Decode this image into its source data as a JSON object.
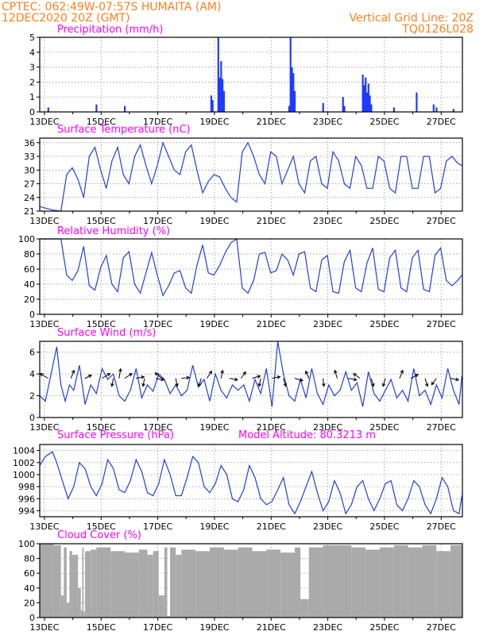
{
  "header": {
    "line1_left": "CPTEC:   062:49W-07:57S   HUMAITA (AM)",
    "line2_left": "12DEC2020 20Z (GMT)",
    "line1_right": "Vertical Grid Line: 20Z",
    "line2_right": "TQ0126L028"
  },
  "x_ticks": [
    "13DEC",
    "15DEC",
    "17DEC",
    "19DEC",
    "21DEC",
    "23DEC",
    "25DEC",
    "27DEC"
  ],
  "chart_data": [
    {
      "type": "bar",
      "title": "Precipitation (mm/h)",
      "ylim": [
        0,
        5
      ],
      "yticks": [
        0,
        1,
        2,
        3,
        4,
        5
      ],
      "x_unit": "days since 12DEC2020 20Z",
      "x": [
        0.3,
        2.0,
        3.0,
        6.05,
        6.1,
        6.3,
        6.35,
        6.4,
        6.45,
        6.5,
        8.8,
        8.85,
        8.9,
        8.95,
        9.0,
        10.0,
        10.7,
        10.75,
        11.4,
        11.45,
        11.5,
        11.55,
        11.6,
        11.65,
        11.7,
        12.5,
        13.3,
        13.9,
        14.0,
        14.6
      ],
      "values": [
        0.3,
        0.5,
        0.4,
        1.1,
        0.8,
        5.0,
        2.3,
        3.4,
        2.2,
        1.4,
        0.4,
        5.0,
        3.0,
        2.6,
        1.4,
        0.6,
        1.0,
        0.4,
        2.5,
        1.8,
        2.3,
        1.3,
        1.9,
        1.1,
        0.5,
        0.3,
        1.3,
        0.5,
        0.3,
        0.2
      ]
    },
    {
      "type": "line",
      "title": "Surface Temperature (nC)",
      "ylim": [
        21,
        37
      ],
      "yticks": [
        21,
        24,
        27,
        30,
        33,
        36
      ],
      "series": [
        {
          "x_unit": "days since 12DEC2020 20Z",
          "x": [
            0,
            0.5,
            0.75,
            0.95,
            1.15,
            1.35,
            1.55,
            1.75,
            1.95,
            2.15,
            2.35,
            2.55,
            2.75,
            2.95,
            3.15,
            3.35,
            3.55,
            3.75,
            3.95,
            4.15,
            4.35,
            4.55,
            4.75,
            4.95,
            5.15,
            5.35,
            5.55,
            5.75,
            5.95,
            6.15,
            6.35,
            6.55,
            6.75,
            6.95,
            7.15,
            7.35,
            7.55,
            7.75,
            7.95,
            8.15,
            8.35,
            8.55,
            8.75,
            8.95,
            9.15,
            9.35,
            9.55,
            9.75,
            9.95,
            10.15,
            10.35,
            10.55,
            10.75,
            10.95,
            11.15,
            11.35,
            11.55,
            11.75,
            11.95,
            12.15,
            12.35,
            12.55,
            12.75,
            12.95,
            13.15,
            13.35,
            13.55,
            13.75,
            13.95,
            14.15,
            14.35,
            14.55,
            14.75,
            14.9
          ],
          "values": [
            22,
            21.2,
            21,
            29,
            30.5,
            28,
            24,
            33,
            35,
            30,
            26,
            32,
            35,
            29,
            27,
            33,
            35.5,
            31,
            27,
            31,
            36,
            33,
            30,
            29,
            34,
            35.5,
            30,
            25,
            27.5,
            29,
            28.5,
            26,
            24,
            23,
            34,
            36,
            33,
            29,
            27,
            34,
            33,
            27,
            30,
            33,
            27,
            25,
            32,
            33,
            27,
            26,
            34,
            32,
            27,
            26,
            33,
            31,
            26,
            26,
            33,
            32,
            26,
            25,
            33,
            33,
            26,
            26,
            33,
            33,
            25,
            26,
            32,
            33,
            31.5,
            31
          ]
        }
      ]
    },
    {
      "type": "line",
      "title": "Relative Humidity (%)",
      "ylim": [
        0,
        100
      ],
      "yticks": [
        0,
        20,
        40,
        60,
        80,
        100
      ],
      "series": [
        {
          "x_unit": "days since 12DEC2020 20Z",
          "x": [
            0,
            0.5,
            0.75,
            0.95,
            1.15,
            1.35,
            1.55,
            1.75,
            1.95,
            2.15,
            2.35,
            2.55,
            2.75,
            2.95,
            3.15,
            3.35,
            3.55,
            3.75,
            3.95,
            4.15,
            4.35,
            4.55,
            4.75,
            4.95,
            5.15,
            5.35,
            5.55,
            5.75,
            5.95,
            6.15,
            6.35,
            6.55,
            6.75,
            6.95,
            7.15,
            7.35,
            7.55,
            7.75,
            7.95,
            8.15,
            8.35,
            8.55,
            8.75,
            8.95,
            9.15,
            9.35,
            9.55,
            9.75,
            9.95,
            10.15,
            10.35,
            10.55,
            10.75,
            10.95,
            11.15,
            11.35,
            11.55,
            11.75,
            11.95,
            12.15,
            12.35,
            12.55,
            12.75,
            12.95,
            13.15,
            13.35,
            13.55,
            13.75,
            13.95,
            14.15,
            14.35,
            14.55,
            14.75,
            14.9
          ],
          "values": [
            100,
            100,
            100,
            52,
            45,
            58,
            90,
            38,
            32,
            62,
            78,
            40,
            30,
            75,
            83,
            40,
            28,
            55,
            82,
            52,
            25,
            38,
            55,
            58,
            35,
            28,
            65,
            92,
            55,
            52,
            65,
            82,
            95,
            100,
            35,
            28,
            45,
            80,
            82,
            55,
            58,
            80,
            72,
            52,
            80,
            83,
            35,
            30,
            72,
            78,
            30,
            28,
            70,
            85,
            35,
            30,
            68,
            88,
            33,
            30,
            75,
            85,
            35,
            30,
            75,
            85,
            33,
            30,
            78,
            88,
            45,
            38,
            45,
            52
          ]
        }
      ]
    },
    {
      "type": "line",
      "title": "Surface Wind (m/s)",
      "ylim": [
        0,
        7
      ],
      "yticks": [
        0,
        2,
        4,
        6
      ],
      "series": [
        {
          "x_unit": "days since 12DEC2020 20Z",
          "x": [
            0,
            0.2,
            0.4,
            0.6,
            0.75,
            0.9,
            1.05,
            1.2,
            1.4,
            1.6,
            1.8,
            2.0,
            2.2,
            2.4,
            2.6,
            2.8,
            3.0,
            3.2,
            3.4,
            3.6,
            3.8,
            4.0,
            4.2,
            4.4,
            4.6,
            4.8,
            5.0,
            5.2,
            5.4,
            5.6,
            5.8,
            6.0,
            6.2,
            6.4,
            6.6,
            6.8,
            7.0,
            7.2,
            7.4,
            7.6,
            7.8,
            8.0,
            8.2,
            8.4,
            8.6,
            8.8,
            9.0,
            9.2,
            9.4,
            9.6,
            9.8,
            10.0,
            10.2,
            10.4,
            10.6,
            10.8,
            11.0,
            11.2,
            11.4,
            11.6,
            11.8,
            12.0,
            12.2,
            12.4,
            12.6,
            12.8,
            13.0,
            13.2,
            13.4,
            13.6,
            13.8,
            14.0,
            14.2,
            14.4,
            14.6,
            14.8,
            14.9
          ],
          "values": [
            2,
            1.5,
            4,
            6.5,
            3,
            1.5,
            3,
            2.5,
            4.8,
            1.2,
            3,
            2.2,
            4.5,
            3.5,
            4,
            2,
            1.5,
            2.5,
            4.5,
            1.8,
            3,
            2.4,
            4,
            3.5,
            2.2,
            3,
            2,
            2.5,
            4.8,
            2.8,
            3.5,
            1.5,
            4,
            2.5,
            1.8,
            3,
            2.5,
            3,
            1.5,
            3.5,
            2.2,
            4.5,
            1,
            7,
            4,
            2,
            1.5,
            3.5,
            1.8,
            4.5,
            2.2,
            1.2,
            3,
            2,
            2.5,
            4.2,
            2.5,
            3.2,
            1,
            4.2,
            2.2,
            1.5,
            2.5,
            3.5,
            1.8,
            2.5,
            1.5,
            4.5,
            2,
            2.5,
            1.2,
            3,
            1.8,
            4.5,
            2.5,
            1.2,
            3.8
          ]
        }
      ],
      "vectors": [
        {
          "x": 0.3,
          "u": -1,
          "v": 0.6
        },
        {
          "x": 1.1,
          "u": 0.4,
          "v": 1
        },
        {
          "x": 1.6,
          "u": 0.8,
          "v": 0.4
        },
        {
          "x": 2.2,
          "u": 1,
          "v": 0.6
        },
        {
          "x": 2.6,
          "u": -0.2,
          "v": -1
        },
        {
          "x": 2.8,
          "u": 0.2,
          "v": 1.2
        },
        {
          "x": 3.0,
          "u": 0.9,
          "v": 0.6
        },
        {
          "x": 3.4,
          "u": 1,
          "v": 0.2
        },
        {
          "x": 3.7,
          "u": -0.2,
          "v": -1
        },
        {
          "x": 4.1,
          "u": 1,
          "v": -0.2
        },
        {
          "x": 4.3,
          "u": -0.8,
          "v": 0.7
        },
        {
          "x": 4.8,
          "u": 0.2,
          "v": -1
        },
        {
          "x": 5.0,
          "u": 1,
          "v": 0.1
        },
        {
          "x": 5.7,
          "u": -0.3,
          "v": -1
        },
        {
          "x": 5.9,
          "u": 0.6,
          "v": 0.9
        },
        {
          "x": 6.4,
          "u": 0.2,
          "v": 1
        },
        {
          "x": 6.7,
          "u": 1,
          "v": -0.2
        },
        {
          "x": 7.1,
          "u": 0.6,
          "v": 0.8
        },
        {
          "x": 7.5,
          "u": 1,
          "v": 0.3
        },
        {
          "x": 7.8,
          "u": -0.2,
          "v": -1
        },
        {
          "x": 8.2,
          "u": 1,
          "v": 0.2
        },
        {
          "x": 8.6,
          "u": 0.3,
          "v": -1
        },
        {
          "x": 9.0,
          "u": 1,
          "v": -0.3
        },
        {
          "x": 9.5,
          "u": -0.4,
          "v": 0.9
        },
        {
          "x": 10.0,
          "u": 0.1,
          "v": -1
        },
        {
          "x": 10.5,
          "u": -0.3,
          "v": 1
        },
        {
          "x": 10.9,
          "u": 1,
          "v": -0.2
        },
        {
          "x": 11.3,
          "u": -0.8,
          "v": 0.6
        },
        {
          "x": 11.7,
          "u": 0.3,
          "v": -1
        },
        {
          "x": 12.2,
          "u": -0.3,
          "v": -1
        },
        {
          "x": 12.7,
          "u": 0.4,
          "v": 1
        },
        {
          "x": 13.1,
          "u": 0.9,
          "v": 0.5
        },
        {
          "x": 13.6,
          "u": 0.3,
          "v": -1
        },
        {
          "x": 14.0,
          "u": -0.6,
          "v": -0.8
        },
        {
          "x": 14.5,
          "u": 1,
          "v": -0.2
        }
      ]
    },
    {
      "type": "line",
      "title": "Surface Pressure (hPa)",
      "annotation": "Model Altitude: 80.3213 m",
      "ylim": [
        993,
        1005
      ],
      "yticks": [
        994,
        996,
        998,
        1000,
        1002,
        1004
      ],
      "series": [
        {
          "x_unit": "days since 12DEC2020 20Z",
          "x": [
            0,
            0.2,
            0.45,
            0.6,
            0.8,
            1.0,
            1.2,
            1.4,
            1.6,
            1.8,
            2.0,
            2.2,
            2.4,
            2.6,
            2.8,
            3.0,
            3.2,
            3.4,
            3.6,
            3.8,
            4.0,
            4.2,
            4.4,
            4.6,
            4.8,
            5.0,
            5.2,
            5.4,
            5.6,
            5.8,
            6.0,
            6.2,
            6.4,
            6.6,
            6.8,
            7.0,
            7.2,
            7.4,
            7.6,
            7.8,
            8.0,
            8.2,
            8.4,
            8.6,
            8.8,
            9.0,
            9.2,
            9.4,
            9.6,
            9.8,
            10.0,
            10.2,
            10.4,
            10.6,
            10.8,
            11.0,
            11.2,
            11.4,
            11.6,
            11.8,
            12.0,
            12.2,
            12.4,
            12.6,
            12.8,
            13.0,
            13.2,
            13.4,
            13.6,
            13.8,
            14.0,
            14.2,
            14.4,
            14.6,
            14.8,
            14.9
          ],
          "values": [
            1001.5,
            1003,
            1003.8,
            1002,
            999,
            996,
            998,
            1002,
            1001,
            998,
            996.5,
            998.5,
            1002.5,
            1001,
            997.5,
            997,
            999,
            1002.5,
            1000.5,
            997,
            996.5,
            998.5,
            1002.5,
            1000,
            996.5,
            996.5,
            999.5,
            1003,
            1002,
            998,
            997,
            998.5,
            1001.5,
            1000,
            996,
            995.5,
            997.5,
            1001.5,
            999.5,
            996,
            995,
            995.5,
            997.5,
            999.5,
            995,
            993.5,
            995.5,
            998,
            1000.5,
            997,
            994,
            995.5,
            999,
            997,
            993.5,
            995,
            998,
            999,
            996,
            994,
            996,
            998.5,
            999,
            995,
            994,
            996,
            999,
            998,
            995,
            993.5,
            996,
            999.5,
            998,
            994,
            993.5,
            996.5
          ]
        }
      ]
    },
    {
      "type": "area",
      "title": "Cloud Cover (%)",
      "ylim": [
        0,
        100
      ],
      "yticks": [
        0,
        20,
        40,
        60,
        80,
        100
      ],
      "series": [
        {
          "x_unit": "days since 12DEC2020 20Z",
          "x": [
            0,
            0.5,
            0.75,
            0.85,
            0.95,
            1.05,
            1.15,
            1.35,
            1.45,
            1.5,
            1.55,
            1.6,
            1.8,
            2.0,
            2.5,
            3.0,
            3.5,
            3.8,
            4.0,
            4.2,
            4.4,
            4.5,
            4.6,
            4.8,
            5.0,
            5.5,
            6.0,
            6.5,
            7.0,
            7.5,
            8.0,
            8.5,
            9.0,
            9.2,
            9.5,
            10.0,
            10.5,
            11.0,
            11.5,
            12.0,
            12.5,
            13.0,
            13.5,
            14.0,
            14.5,
            14.9
          ],
          "values": [
            100,
            98,
            30,
            95,
            20,
            90,
            85,
            40,
            10,
            95,
            8,
            90,
            92,
            95,
            90,
            88,
            92,
            85,
            90,
            30,
            95,
            2,
            95,
            85,
            92,
            90,
            95,
            92,
            95,
            90,
            92,
            88,
            95,
            25,
            95,
            98,
            98,
            95,
            92,
            95,
            98,
            95,
            98,
            90,
            98,
            100
          ]
        }
      ]
    }
  ]
}
